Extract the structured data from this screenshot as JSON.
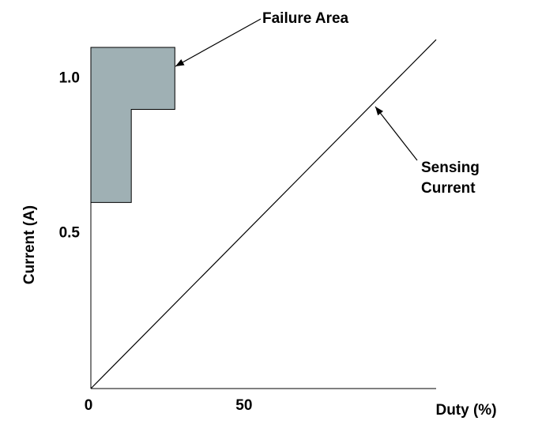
{
  "chart_data": {
    "type": "line",
    "x_label": "Duty (%)",
    "y_label": "Current (A)",
    "x": [
      0,
      111
    ],
    "values": [
      0,
      1.125
    ],
    "color": "#000000",
    "failure_area": {
      "x": [
        0,
        27,
        27,
        13,
        13,
        0
      ],
      "y": [
        1.1,
        1.1,
        0.9,
        0.9,
        0.6,
        0.6
      ],
      "color": "#9fb0b4"
    },
    "annotations": [
      {
        "lines": [
          "Failure Area"
        ]
      },
      {
        "lines": [
          "Sensing",
          "Current"
        ]
      }
    ],
    "xlim": [
      0,
      111
    ],
    "ylim": [
      0,
      1.1
    ],
    "xticks": [
      0,
      50
    ],
    "yticks": [
      0.5,
      {
        "value": 1,
        "label": "1.0"
      }
    ]
  }
}
